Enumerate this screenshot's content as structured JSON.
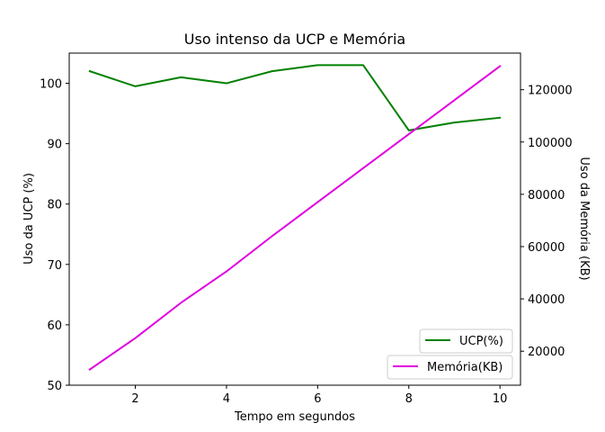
{
  "chart_data": {
    "type": "line",
    "title": "Uso intenso da UCP e Memória",
    "xlabel": "Tempo em segundos",
    "ylabel_left": "Uso da UCP (%)",
    "ylabel_right": "Uso da Memória (KB)",
    "x": [
      1,
      2,
      3,
      4,
      5,
      6,
      7,
      8,
      9,
      10
    ],
    "x_ticks": [
      2,
      4,
      6,
      8,
      10
    ],
    "xlim": [
      0.55,
      10.45
    ],
    "y_left_ticks": [
      50,
      60,
      70,
      80,
      90,
      100
    ],
    "ylim_left": [
      50,
      105
    ],
    "y_right_ticks": [
      20000,
      40000,
      60000,
      80000,
      100000,
      120000
    ],
    "ylim_right": [
      7000,
      134000
    ],
    "grid": false,
    "series": [
      {
        "name": "UCP(%)",
        "axis": "left",
        "color": "#008000",
        "values": [
          102.0,
          99.5,
          101.0,
          100.0,
          102.0,
          103.0,
          103.0,
          92.2,
          93.5,
          94.3
        ]
      },
      {
        "name": "Memória(KB)",
        "axis": "right",
        "color": "#e000e0",
        "values": [
          13000,
          25000,
          38500,
          50500,
          64000,
          77000,
          90000,
          103000,
          116000,
          129000
        ]
      }
    ],
    "legends": [
      {
        "series": "UCP(%)",
        "placement": "lower-right"
      },
      {
        "series": "Memória(KB)",
        "placement": "bottom-right"
      }
    ]
  }
}
